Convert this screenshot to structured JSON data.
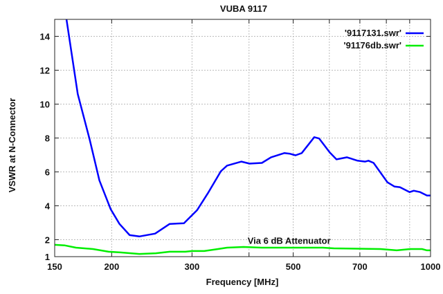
{
  "chart_data": {
    "type": "line",
    "title": "VUBA 9117",
    "xlabel": "Frequency [MHz]",
    "ylabel": "VSWR at N-Connector",
    "x_scale": "log",
    "xlim": [
      150,
      1000
    ],
    "ylim": [
      1,
      15
    ],
    "x_ticks": [
      150,
      200,
      300,
      500,
      700,
      1000
    ],
    "x_grid": [
      200,
      300,
      400,
      500,
      600,
      700,
      800,
      900
    ],
    "y_ticks": [
      1,
      2,
      4,
      6,
      8,
      10,
      12,
      14
    ],
    "grid": true,
    "legend_position": "top-right",
    "annotation": {
      "text": "Via 6 dB Attenuator",
      "x": 400,
      "y": 2
    },
    "series": [
      {
        "name": "'9117131.swr'",
        "color": "#0000ff",
        "points": [
          [
            150,
            19
          ],
          [
            159,
            15.1
          ],
          [
            168.5,
            10.6
          ],
          [
            179,
            7.9
          ],
          [
            188,
            5.5
          ],
          [
            199,
            3.8
          ],
          [
            208,
            2.93
          ],
          [
            219,
            2.27
          ],
          [
            230,
            2.19
          ],
          [
            249,
            2.36
          ],
          [
            268,
            2.93
          ],
          [
            288,
            2.97
          ],
          [
            308,
            3.75
          ],
          [
            326,
            4.8
          ],
          [
            347,
            6.04
          ],
          [
            358,
            6.37
          ],
          [
            385,
            6.61
          ],
          [
            401,
            6.49
          ],
          [
            427,
            6.53
          ],
          [
            447,
            6.86
          ],
          [
            478,
            7.11
          ],
          [
            492,
            7.07
          ],
          [
            506,
            6.98
          ],
          [
            522,
            7.11
          ],
          [
            556,
            8.05
          ],
          [
            570,
            7.97
          ],
          [
            601,
            7.15
          ],
          [
            622,
            6.74
          ],
          [
            656,
            6.86
          ],
          [
            692,
            6.66
          ],
          [
            719,
            6.61
          ],
          [
            731,
            6.66
          ],
          [
            750,
            6.53
          ],
          [
            804,
            5.39
          ],
          [
            833,
            5.14
          ],
          [
            857,
            5.1
          ],
          [
            900,
            4.81
          ],
          [
            919,
            4.89
          ],
          [
            949,
            4.81
          ],
          [
            982,
            4.61
          ],
          [
            1000,
            4.61
          ]
        ]
      },
      {
        "name": "'91176db.swr'",
        "color": "#00ee00",
        "points": [
          [
            150,
            1.7
          ],
          [
            158,
            1.66
          ],
          [
            167,
            1.53
          ],
          [
            182,
            1.45
          ],
          [
            197,
            1.29
          ],
          [
            209,
            1.25
          ],
          [
            230,
            1.16
          ],
          [
            250,
            1.2
          ],
          [
            268,
            1.29
          ],
          [
            290,
            1.29
          ],
          [
            300,
            1.33
          ],
          [
            319,
            1.33
          ],
          [
            342,
            1.45
          ],
          [
            358,
            1.53
          ],
          [
            389,
            1.57
          ],
          [
            427,
            1.53
          ],
          [
            522,
            1.53
          ],
          [
            580,
            1.53
          ],
          [
            614,
            1.49
          ],
          [
            777,
            1.45
          ],
          [
            843,
            1.37
          ],
          [
            903,
            1.45
          ],
          [
            958,
            1.45
          ],
          [
            982,
            1.37
          ],
          [
            1000,
            1.37
          ]
        ]
      }
    ]
  }
}
